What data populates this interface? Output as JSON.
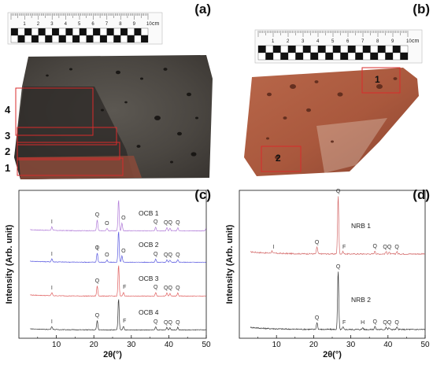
{
  "panels": {
    "a": {
      "label": "(a)",
      "ruler": {
        "numbers": [
          "1",
          "2",
          "3",
          "4",
          "5",
          "6",
          "7",
          "8",
          "9",
          "10"
        ],
        "unit": "cm"
      },
      "regions": [
        "1",
        "2",
        "3",
        "4"
      ]
    },
    "b": {
      "label": "(b)",
      "ruler": {
        "numbers": [
          "1",
          "2",
          "3",
          "4",
          "5",
          "6",
          "7",
          "8",
          "9",
          "10"
        ],
        "unit": "cm"
      },
      "regions": [
        "1",
        "2"
      ]
    },
    "c": {
      "label": "(c)"
    },
    "d": {
      "label": "(d)"
    }
  },
  "chart_data": [
    {
      "type": "line",
      "panel": "c",
      "xlabel": "2θ(°)",
      "ylabel": "Intensity (Arb. unit)",
      "xlim": [
        0,
        50
      ],
      "xticks": [
        "10",
        "20",
        "30",
        "40",
        "50"
      ],
      "series": [
        {
          "name": "OCB 1",
          "color": "#b07ad8",
          "peaks": [
            [
              8.8,
              0.12
            ],
            [
              20.9,
              0.35
            ],
            [
              23.5,
              0.08
            ],
            [
              26.6,
              1.0
            ],
            [
              27.5,
              0.25
            ],
            [
              36.5,
              0.12
            ],
            [
              39.5,
              0.1
            ],
            [
              40.3,
              0.08
            ],
            [
              42.4,
              0.1
            ],
            [
              50.0,
              0.09
            ]
          ],
          "annotations": [
            {
              "x": 8.8,
              "text": "I"
            },
            {
              "x": 20.9,
              "text": "Q"
            },
            {
              "x": 23.5,
              "text": "O"
            },
            {
              "x": 27.9,
              "text": "O"
            },
            {
              "x": 36.5,
              "text": "Q"
            },
            {
              "x": 39.8,
              "text": "QQ"
            },
            {
              "x": 42.4,
              "text": "Q"
            }
          ]
        },
        {
          "name": "OCB 2",
          "color": "#5a5ae0",
          "peaks": [
            [
              8.8,
              0.1
            ],
            [
              20.9,
              0.3
            ],
            [
              23.5,
              0.07
            ],
            [
              26.6,
              1.0
            ],
            [
              27.5,
              0.2
            ],
            [
              36.5,
              0.1
            ],
            [
              39.5,
              0.08
            ],
            [
              40.3,
              0.07
            ],
            [
              42.4,
              0.08
            ]
          ],
          "annotations": [
            {
              "x": 8.8,
              "text": "I"
            },
            {
              "x": 20.9,
              "text": "Q"
            },
            {
              "x": 20.9,
              "text": "I"
            },
            {
              "x": 23.5,
              "text": "O"
            },
            {
              "x": 27.9,
              "text": "O"
            },
            {
              "x": 36.5,
              "text": "Q"
            },
            {
              "x": 39.8,
              "text": "QQ"
            },
            {
              "x": 42.4,
              "text": "Q"
            }
          ]
        },
        {
          "name": "OCB 3",
          "color": "#e06060",
          "peaks": [
            [
              8.8,
              0.1
            ],
            [
              20.9,
              0.32
            ],
            [
              26.6,
              1.0
            ],
            [
              27.9,
              0.12
            ],
            [
              36.5,
              0.12
            ],
            [
              39.5,
              0.1
            ],
            [
              40.3,
              0.08
            ],
            [
              42.4,
              0.1
            ]
          ],
          "annotations": [
            {
              "x": 8.8,
              "text": "I"
            },
            {
              "x": 20.9,
              "text": "Q"
            },
            {
              "x": 28.2,
              "text": "F"
            },
            {
              "x": 36.5,
              "text": "Q"
            },
            {
              "x": 39.8,
              "text": "QQ"
            },
            {
              "x": 42.4,
              "text": "Q"
            }
          ]
        },
        {
          "name": "OCB 4",
          "color": "#333333",
          "peaks": [
            [
              8.8,
              0.1
            ],
            [
              20.9,
              0.3
            ],
            [
              26.6,
              1.0
            ],
            [
              27.9,
              0.12
            ],
            [
              36.5,
              0.1
            ],
            [
              39.5,
              0.08
            ],
            [
              40.3,
              0.07
            ],
            [
              42.4,
              0.08
            ]
          ],
          "annotations": [
            {
              "x": 8.8,
              "text": "I"
            },
            {
              "x": 20.9,
              "text": "Q"
            },
            {
              "x": 28.2,
              "text": "F"
            },
            {
              "x": 36.5,
              "text": "Q"
            },
            {
              "x": 39.8,
              "text": "QQ"
            },
            {
              "x": 42.4,
              "text": "Q"
            }
          ]
        }
      ]
    },
    {
      "type": "line",
      "panel": "d",
      "xlabel": "2θ(°)",
      "ylabel": "Intensity (Arb. unit)",
      "xlim": [
        0,
        50
      ],
      "xticks": [
        "10",
        "20",
        "30",
        "40",
        "50"
      ],
      "series": [
        {
          "name": "NRB 1",
          "color": "#d46a6a",
          "peaks": [
            [
              8.8,
              0.04
            ],
            [
              20.9,
              0.12
            ],
            [
              26.6,
              1.0
            ],
            [
              27.9,
              0.04
            ],
            [
              36.5,
              0.05
            ],
            [
              39.5,
              0.04
            ],
            [
              40.3,
              0.03
            ],
            [
              42.4,
              0.04
            ]
          ],
          "annotations": [
            {
              "x": 9.2,
              "text": "I"
            },
            {
              "x": 20.9,
              "text": "Q"
            },
            {
              "x": 26.6,
              "text": "Q"
            },
            {
              "x": 28.2,
              "text": "F"
            },
            {
              "x": 36.5,
              "text": "Q"
            },
            {
              "x": 39.8,
              "text": "QQ"
            },
            {
              "x": 42.4,
              "text": "Q"
            }
          ]
        },
        {
          "name": "NRB 2",
          "color": "#333333",
          "peaks": [
            [
              20.9,
              0.12
            ],
            [
              26.6,
              1.0
            ],
            [
              27.9,
              0.04
            ],
            [
              33.2,
              0.03
            ],
            [
              36.5,
              0.05
            ],
            [
              39.5,
              0.04
            ],
            [
              40.3,
              0.03
            ],
            [
              42.4,
              0.04
            ]
          ],
          "annotations": [
            {
              "x": 20.9,
              "text": "Q"
            },
            {
              "x": 26.6,
              "text": "Q"
            },
            {
              "x": 28.2,
              "text": "F"
            },
            {
              "x": 33.2,
              "text": "H"
            },
            {
              "x": 36.5,
              "text": "Q"
            },
            {
              "x": 39.8,
              "text": "QQ"
            },
            {
              "x": 42.4,
              "text": "Q"
            }
          ]
        }
      ]
    }
  ]
}
